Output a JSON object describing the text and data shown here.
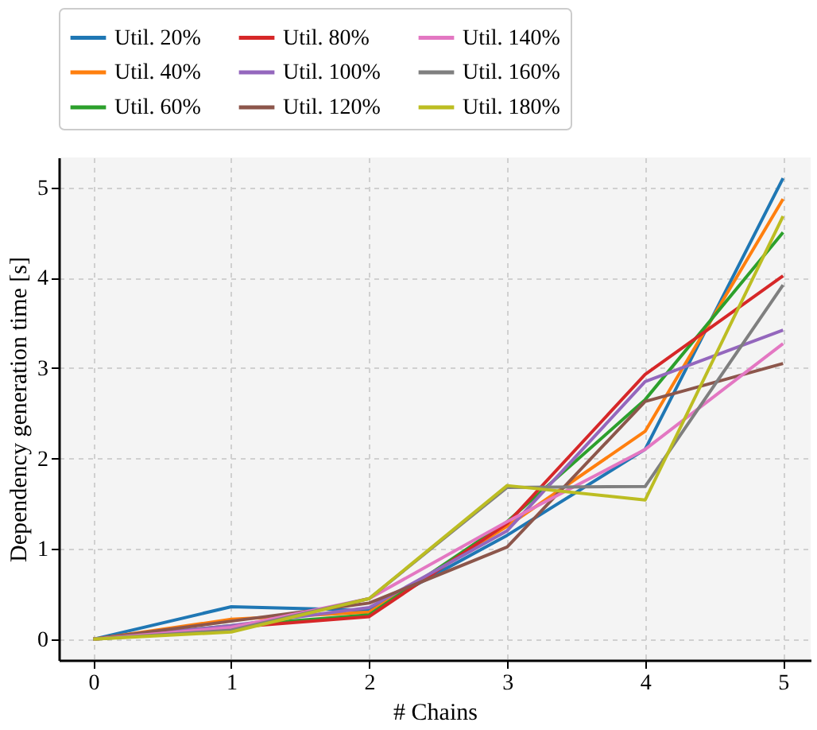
{
  "chart_data": {
    "type": "line",
    "xlabel": "# Chains",
    "ylabel": "Dependency generation time [s]",
    "x": [
      0,
      1,
      2,
      3,
      4,
      5
    ],
    "xlim": [
      -0.25,
      5.2
    ],
    "xticks": [
      0,
      1,
      2,
      3,
      4,
      5
    ],
    "ylim": [
      -0.23,
      5.33
    ],
    "yticks": [
      0,
      1,
      2,
      3,
      4,
      5
    ],
    "grid": true,
    "legend": "top",
    "line_style": "solid",
    "marker": "none",
    "series": [
      {
        "name": "Util. 20%",
        "color": "#1f77b4",
        "values": [
          0,
          0.36,
          0.32,
          1.15,
          2.1,
          5.1
        ]
      },
      {
        "name": "Util. 40%",
        "color": "#ff7f0e",
        "values": [
          0,
          0.22,
          0.3,
          1.25,
          2.3,
          4.87
        ]
      },
      {
        "name": "Util. 60%",
        "color": "#2ca02c",
        "values": [
          0,
          0.15,
          0.27,
          1.3,
          2.65,
          4.5
        ]
      },
      {
        "name": "Util. 80%",
        "color": "#d62728",
        "values": [
          0,
          0.13,
          0.25,
          1.28,
          2.93,
          4.02
        ]
      },
      {
        "name": "Util. 100%",
        "color": "#9467bd",
        "values": [
          0,
          0.15,
          0.35,
          1.2,
          2.85,
          3.42
        ]
      },
      {
        "name": "Util. 120%",
        "color": "#8c564b",
        "values": [
          0,
          0.2,
          0.4,
          1.02,
          2.63,
          3.05
        ]
      },
      {
        "name": "Util. 140%",
        "color": "#e377c2",
        "values": [
          0,
          0.13,
          0.45,
          1.3,
          2.1,
          3.27
        ]
      },
      {
        "name": "Util. 160%",
        "color": "#7f7f7f",
        "values": [
          0,
          0.1,
          0.45,
          1.68,
          1.69,
          3.92
        ]
      },
      {
        "name": "Util. 180%",
        "color": "#bcbd22",
        "values": [
          0,
          0.08,
          0.45,
          1.7,
          1.54,
          4.68
        ]
      }
    ]
  }
}
